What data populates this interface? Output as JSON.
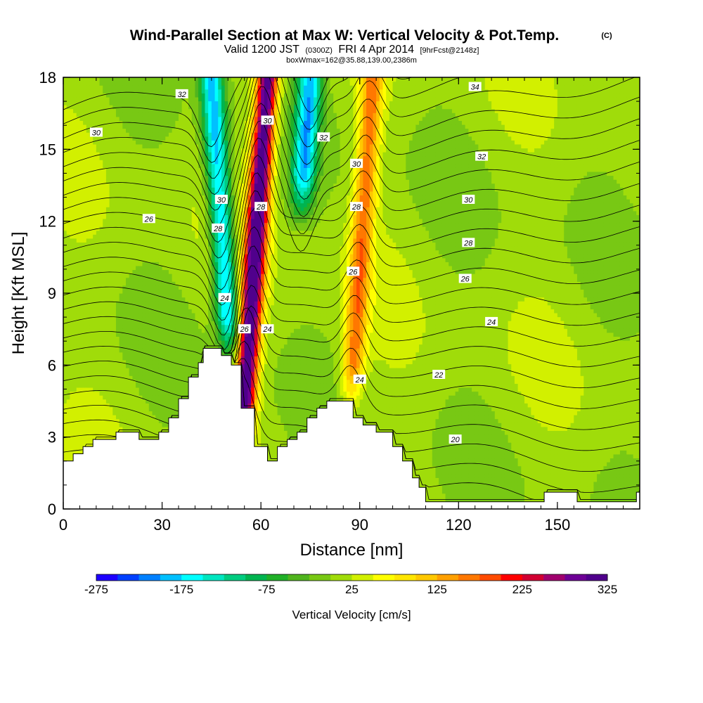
{
  "header": {
    "title": "Wind-Parallel Section at Max W: Vertical Velocity & Pot.Temp.",
    "copyright": "(C)",
    "valid_prefix": "Valid 1200 JST",
    "valid_utc": "(0300Z)",
    "valid_date": "FRI 4 Apr 2014",
    "forecast": "[9hrFcst@2148z]",
    "box_info": "boxWmax=162@35.88,139.00,2386m"
  },
  "chart_data": {
    "type": "heatmap",
    "xlabel": "Distance [nm]",
    "ylabel": "Height [Kft MSL]",
    "xlim": [
      0,
      175
    ],
    "ylim": [
      0,
      18
    ],
    "x_ticks": [
      "0",
      "30",
      "60",
      "90",
      "120",
      "150"
    ],
    "y_ticks": [
      "0",
      "3",
      "6",
      "9",
      "12",
      "15",
      "18"
    ],
    "colorbar": {
      "label": "Vertical Velocity [cm/s]",
      "min": -275,
      "max": 325,
      "step": 25,
      "tick_labels": [
        "-275",
        "-175",
        "-75",
        "25",
        "125",
        "225",
        "325"
      ],
      "colors": [
        "#1e00ff",
        "#0040ff",
        "#0080ff",
        "#00c0ff",
        "#00ffff",
        "#00e6c0",
        "#00cc80",
        "#00b450",
        "#20b028",
        "#50b41e",
        "#78c814",
        "#a0dc0a",
        "#d2f000",
        "#ffff00",
        "#ffe600",
        "#ffc800",
        "#ffa000",
        "#ff7800",
        "#ff4b00",
        "#ff0000",
        "#d20032",
        "#a0006e",
        "#6e0096",
        "#50008c"
      ]
    },
    "terrain": [
      [
        0,
        2.0
      ],
      [
        3,
        2.0
      ],
      [
        3,
        2.3
      ],
      [
        6,
        2.3
      ],
      [
        6,
        2.6
      ],
      [
        9,
        2.6
      ],
      [
        9,
        2.9
      ],
      [
        16,
        2.9
      ],
      [
        16,
        3.2
      ],
      [
        23,
        3.2
      ],
      [
        23,
        2.9
      ],
      [
        29,
        2.9
      ],
      [
        29,
        3.2
      ],
      [
        32,
        3.2
      ],
      [
        32,
        3.8
      ],
      [
        35,
        3.8
      ],
      [
        35,
        4.6
      ],
      [
        38,
        4.6
      ],
      [
        38,
        5.5
      ],
      [
        41,
        5.5
      ],
      [
        41,
        6.1
      ],
      [
        42.5,
        6.1
      ],
      [
        42.5,
        6.7
      ],
      [
        48,
        6.7
      ],
      [
        48,
        6.4
      ],
      [
        51,
        6.4
      ],
      [
        51,
        6.0
      ],
      [
        54,
        6.0
      ],
      [
        54,
        4.2
      ],
      [
        58,
        4.2
      ],
      [
        58,
        2.6
      ],
      [
        62,
        2.6
      ],
      [
        62,
        2.0
      ],
      [
        65,
        2.0
      ],
      [
        65,
        2.6
      ],
      [
        68,
        2.6
      ],
      [
        68,
        2.9
      ],
      [
        71,
        2.9
      ],
      [
        71,
        3.2
      ],
      [
        74,
        3.2
      ],
      [
        74,
        3.8
      ],
      [
        77,
        3.8
      ],
      [
        77,
        4.2
      ],
      [
        80,
        4.2
      ],
      [
        80,
        4.5
      ],
      [
        88,
        4.5
      ],
      [
        88,
        3.8
      ],
      [
        91,
        3.8
      ],
      [
        91,
        3.5
      ],
      [
        95,
        3.5
      ],
      [
        95,
        3.2
      ],
      [
        100,
        3.2
      ],
      [
        100,
        2.6
      ],
      [
        103,
        2.6
      ],
      [
        103,
        2.0
      ],
      [
        106,
        2.0
      ],
      [
        106,
        1.3
      ],
      [
        108,
        1.3
      ],
      [
        108,
        0.9
      ],
      [
        110,
        0.9
      ],
      [
        110,
        0.3
      ],
      [
        146,
        0.3
      ],
      [
        146,
        0.7
      ],
      [
        156,
        0.7
      ],
      [
        156,
        0.3
      ],
      [
        174,
        0.3
      ],
      [
        174,
        0.7
      ],
      [
        175,
        0.7
      ]
    ],
    "updrafts": [
      {
        "x_base": 54,
        "x_top": 62,
        "z_base": 2.5,
        "z_top": 18,
        "peak": 325
      },
      {
        "x_base": 87,
        "x_top": 94,
        "z_base": 4,
        "z_top": 18,
        "peak": 150
      }
    ],
    "downdrafts": [
      {
        "x_base": 51,
        "x_top": 45,
        "z_base": 6,
        "z_top": 18,
        "peak": -200
      },
      {
        "x_base": 72,
        "x_top": 75,
        "z_base": 12,
        "z_top": 18,
        "peak": -190
      }
    ],
    "pot_temp_labels": [
      {
        "text": "32",
        "x": 36,
        "z": 17.3
      },
      {
        "text": "30",
        "x": 10,
        "z": 15.7
      },
      {
        "text": "30",
        "x": 62,
        "z": 16.2
      },
      {
        "text": "32",
        "x": 79,
        "z": 15.5
      },
      {
        "text": "34",
        "x": 125,
        "z": 17.6
      },
      {
        "text": "32",
        "x": 127,
        "z": 14.7
      },
      {
        "text": "30",
        "x": 89,
        "z": 14.4
      },
      {
        "text": "30",
        "x": 123,
        "z": 12.9
      },
      {
        "text": "26",
        "x": 26,
        "z": 12.1
      },
      {
        "text": "30",
        "x": 48,
        "z": 12.9
      },
      {
        "text": "28",
        "x": 60,
        "z": 12.6
      },
      {
        "text": "28",
        "x": 89,
        "z": 12.6
      },
      {
        "text": "28",
        "x": 47,
        "z": 11.7
      },
      {
        "text": "28",
        "x": 123,
        "z": 11.1
      },
      {
        "text": "26",
        "x": 88,
        "z": 9.9
      },
      {
        "text": "26",
        "x": 122,
        "z": 9.6
      },
      {
        "text": "24",
        "x": 49,
        "z": 8.8
      },
      {
        "text": "26",
        "x": 55,
        "z": 7.5
      },
      {
        "text": "24",
        "x": 62,
        "z": 7.5
      },
      {
        "text": "24",
        "x": 130,
        "z": 7.8
      },
      {
        "text": "22",
        "x": 114,
        "z": 5.6
      },
      {
        "text": "24",
        "x": 90,
        "z": 5.4
      },
      {
        "text": "20",
        "x": 119,
        "z": 2.9
      }
    ]
  }
}
